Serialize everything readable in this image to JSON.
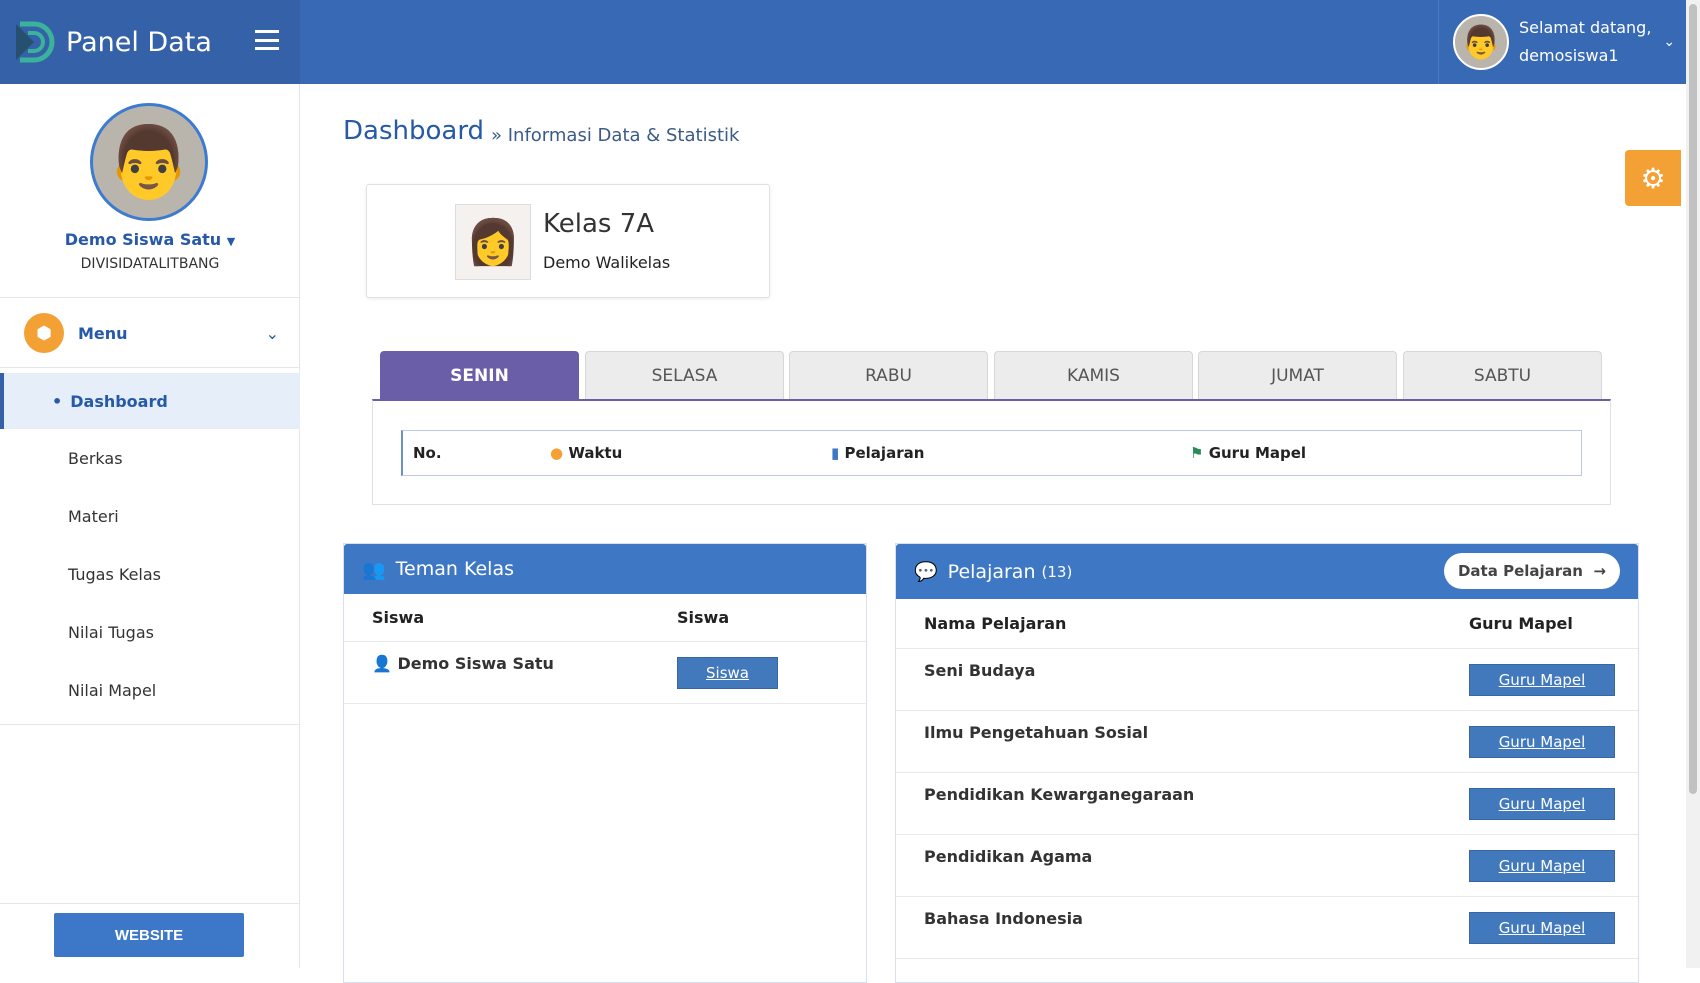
{
  "header": {
    "brand": "Panel Data",
    "greeting": "Selamat datang,",
    "username": "demosiswa1"
  },
  "sidebar": {
    "name": "Demo Siswa Satu",
    "org": "DIVISIDATALITBANG",
    "menu_label": "Menu",
    "items": [
      {
        "label": "Dashboard",
        "active": true
      },
      {
        "label": "Berkas"
      },
      {
        "label": "Materi"
      },
      {
        "label": "Tugas Kelas"
      },
      {
        "label": "Nilai Tugas"
      },
      {
        "label": "Nilai Mapel"
      }
    ],
    "website_button": "WEBSITE"
  },
  "page": {
    "title": "Dashboard",
    "subtitle": "» Informasi Data & Statistik"
  },
  "kelas": {
    "name": "Kelas 7A",
    "walikelas": "Demo Walikelas"
  },
  "tabs": [
    "SENIN",
    "SELASA",
    "RABU",
    "KAMIS",
    "JUMAT",
    "SABTU"
  ],
  "schedule": {
    "columns": [
      "No.",
      "Waktu",
      "Pelajaran",
      "Guru Mapel"
    ]
  },
  "teman": {
    "title": "Teman Kelas",
    "columns": [
      "Siswa",
      "Siswa"
    ],
    "rows": [
      {
        "name": "Demo Siswa Satu",
        "button": "Siswa"
      }
    ]
  },
  "pelajaran": {
    "title": "Pelajaran",
    "count": "(13)",
    "button": "Data Pelajaran",
    "columns": [
      "Nama Pelajaran",
      "Guru Mapel"
    ],
    "rows": [
      {
        "name": "Seni Budaya",
        "button": "Guru Mapel"
      },
      {
        "name": "Ilmu Pengetahuan Sosial",
        "button": "Guru Mapel"
      },
      {
        "name": "Pendidikan Kewarganegaraan",
        "button": "Guru Mapel"
      },
      {
        "name": "Pendidikan Agama",
        "button": "Guru Mapel"
      },
      {
        "name": "Bahasa Indonesia",
        "button": "Guru Mapel"
      }
    ]
  },
  "colors": {
    "primary": "#3869b5",
    "accent": "#f3a034",
    "tab_active": "#6b5ea9"
  }
}
